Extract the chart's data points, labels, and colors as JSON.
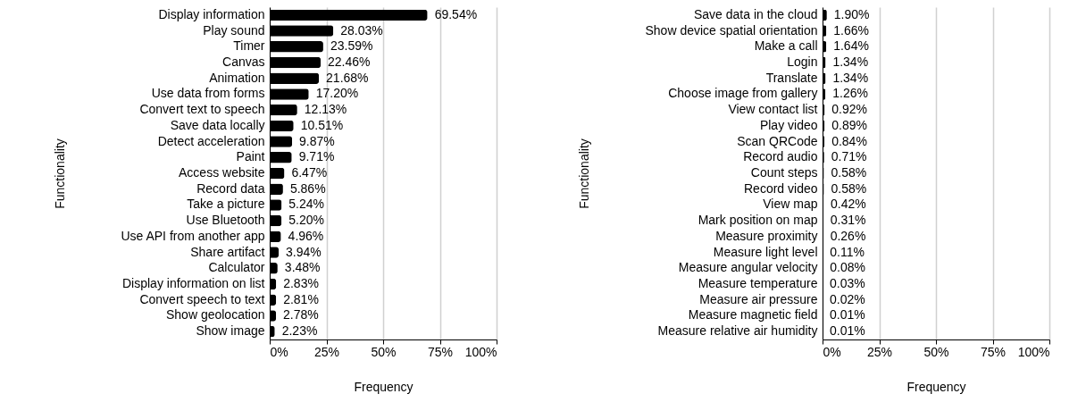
{
  "chart_data": [
    {
      "type": "bar",
      "orientation": "horizontal",
      "xlabel": "Frequency",
      "ylabel": "Functionality",
      "categories": [
        "Display information",
        "Play sound",
        "Timer",
        "Canvas",
        "Animation",
        "Use data from forms",
        "Convert text to speech",
        "Save data locally",
        "Detect acceleration",
        "Paint",
        "Access website",
        "Record data",
        "Take a picture",
        "Use Bluetooth",
        "Use API from another app",
        "Share artifact",
        "Calculator",
        "Display information on list",
        "Convert speech to text",
        "Show geolocation",
        "Show image"
      ],
      "values": [
        69.54,
        28.03,
        23.59,
        22.46,
        21.68,
        17.2,
        12.13,
        10.51,
        9.87,
        9.71,
        6.47,
        5.86,
        5.24,
        5.2,
        4.96,
        3.94,
        3.48,
        2.83,
        2.81,
        2.78,
        2.23
      ],
      "value_labels": [
        "69.54%",
        "28.03%",
        "23.59%",
        "22.46%",
        "21.68%",
        "17.20%",
        "12.13%",
        "10.51%",
        "9.87%",
        "9.71%",
        "6.47%",
        "5.86%",
        "5.24%",
        "5.20%",
        "4.96%",
        "3.94%",
        "3.48%",
        "2.83%",
        "2.81%",
        "2.78%",
        "2.23%"
      ],
      "color": "#000000",
      "xlim": [
        0,
        100
      ],
      "xticks": [
        {
          "value": 0,
          "label": "0%"
        },
        {
          "value": 25,
          "label": "25%"
        },
        {
          "value": 50,
          "label": "50%"
        },
        {
          "value": 75,
          "label": "75%"
        },
        {
          "value": 100,
          "label": "100%"
        }
      ],
      "grid": "x"
    },
    {
      "type": "bar",
      "orientation": "horizontal",
      "xlabel": "Frequency",
      "ylabel": "Functionality",
      "categories": [
        "Save data in the cloud",
        "Show device spatial orientation",
        "Make a call",
        "Login",
        "Translate",
        "Choose image from gallery",
        "View contact list",
        "Play video",
        "Scan QRCode",
        "Record audio",
        "Count steps",
        "Record video",
        "View map",
        "Mark position on map",
        "Measure proximity",
        "Measure light level",
        "Measure angular velocity",
        "Measure temperature",
        "Measure air pressure",
        "Measure magnetic field",
        "Measure relative air humidity"
      ],
      "values": [
        1.9,
        1.66,
        1.64,
        1.34,
        1.34,
        1.26,
        0.92,
        0.89,
        0.84,
        0.71,
        0.58,
        0.58,
        0.42,
        0.31,
        0.26,
        0.11,
        0.08,
        0.03,
        0.02,
        0.01,
        0.01
      ],
      "value_labels": [
        "1.90%",
        "1.66%",
        "1.64%",
        "1.34%",
        "1.34%",
        "1.26%",
        "0.92%",
        "0.89%",
        "0.84%",
        "0.71%",
        "0.58%",
        "0.58%",
        "0.42%",
        "0.31%",
        "0.26%",
        "0.11%",
        "0.08%",
        "0.03%",
        "0.02%",
        "0.01%",
        "0.01%"
      ],
      "color": "#000000",
      "xlim": [
        0,
        100
      ],
      "xticks": [
        {
          "value": 0,
          "label": "0%"
        },
        {
          "value": 25,
          "label": "25%"
        },
        {
          "value": 50,
          "label": "50%"
        },
        {
          "value": 75,
          "label": "75%"
        },
        {
          "value": 100,
          "label": "100%"
        }
      ],
      "grid": "x"
    }
  ]
}
